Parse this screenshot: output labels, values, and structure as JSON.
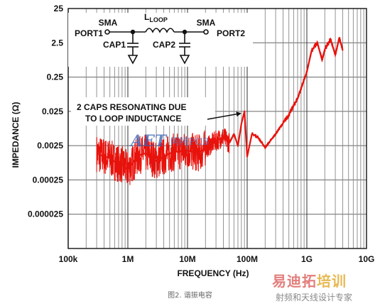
{
  "chart_data": {
    "type": "line",
    "xlabel": "FREQUENCY (Hz)",
    "ylabel": "IMPEDANCE (Ω)",
    "x_scale": "log",
    "y_scale": "log",
    "xlim": [
      100000,
      10000000000
    ],
    "ylim": [
      2.5e-06,
      25
    ],
    "x_ticks": [
      {
        "value": 100000,
        "label": "100k"
      },
      {
        "value": 1000000,
        "label": "1M"
      },
      {
        "value": 10000000,
        "label": "10M"
      },
      {
        "value": 100000000,
        "label": "100M"
      },
      {
        "value": 1000000000,
        "label": "1G"
      },
      {
        "value": 10000000000,
        "label": "10G"
      }
    ],
    "y_ticks": [
      {
        "value": 25,
        "label": "25"
      },
      {
        "value": 2.5,
        "label": "2.5"
      },
      {
        "value": 0.25,
        "label": "0.25"
      },
      {
        "value": 0.025,
        "label": "0.025"
      },
      {
        "value": 0.0025,
        "label": "0.0025"
      },
      {
        "value": 0.00025,
        "label": "0.00025"
      },
      {
        "value": 2.5e-05,
        "label": "0.000025"
      }
    ],
    "grid": true,
    "series": [
      {
        "color": "#e8120c",
        "x": [
          300000,
          400000,
          500000,
          600000,
          800000,
          1000000,
          1500000,
          2000000,
          3000000,
          5000000,
          7000000,
          10000000,
          15000000,
          20000000,
          30000000,
          40000000,
          50000000,
          60000000,
          70000000,
          80000000,
          90000000,
          100000000,
          120000000,
          150000000,
          200000000,
          300000000,
          500000000,
          700000000,
          1000000000,
          1200000000,
          1500000000,
          1800000000,
          2000000000,
          2500000000,
          3000000000,
          3500000000,
          4000000000
        ],
        "values": [
          0.0015,
          0.0012,
          0.0011,
          0.00085,
          0.0007,
          0.0005,
          0.0013,
          0.0015,
          0.0009,
          0.0015,
          0.0017,
          0.0018,
          0.0015,
          0.0021,
          0.0035,
          0.0045,
          0.003,
          0.0055,
          0.0025,
          0.011,
          0.025,
          0.0012,
          0.0055,
          0.0045,
          0.0022,
          0.0055,
          0.02,
          0.06,
          0.35,
          1.5,
          2.5,
          0.8,
          1.6,
          3.2,
          1.1,
          3.5,
          1.5
        ]
      }
    ],
    "annotations": [
      {
        "text": [
          "2 CAPS RESONATING DUE",
          "TO LOOP INDUCTANCE"
        ],
        "points_to_x": 80000000,
        "points_to_y": 0.022
      }
    ]
  },
  "schematic": {
    "port1_sma": "SMA",
    "port1": "PORT1",
    "inductor_base": "L",
    "inductor_sub": "LOOP",
    "port2_sma": "SMA",
    "port2": "PORT2",
    "cap1": "CAP1",
    "cap2": "CAP2"
  },
  "caption": "图2. 谐振电容",
  "watermarks": {
    "logo_text": "AET",
    "logo_cn": "阿特PCB",
    "brand_red": "易迪拓",
    "brand_gold": "培训",
    "tagline": "射频和天线设计专家"
  }
}
